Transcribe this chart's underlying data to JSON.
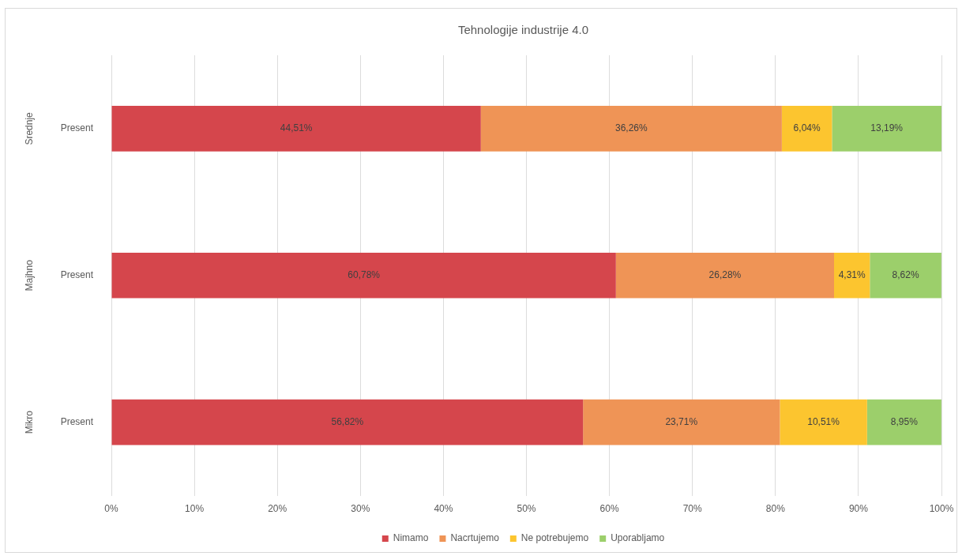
{
  "chart_data": {
    "type": "bar",
    "title": "Tehnologije industrije 4.0",
    "orientation": "horizontal",
    "stacked": true,
    "categories": [
      "Srednje",
      "Majhno",
      "Mikro"
    ],
    "annotations": [
      "Present",
      "Present",
      "Present"
    ],
    "series": [
      {
        "name": "Nimamo",
        "color": "#d5464c",
        "values": [
          44.51,
          60.78,
          56.82
        ],
        "value_labels": [
          "44,51%",
          "60,78%",
          "56,82%"
        ]
      },
      {
        "name": "Nacrtujemo",
        "color": "#ef9456",
        "values": [
          36.26,
          26.28,
          23.71
        ],
        "value_labels": [
          "36,26%",
          "26,28%",
          "23,71%"
        ]
      },
      {
        "name": "Ne potrebujemo",
        "color": "#fcc52f",
        "values": [
          6.04,
          4.31,
          10.51
        ],
        "value_labels": [
          "6,04%",
          "4,31%",
          "10,51%"
        ]
      },
      {
        "name": "Uporabljamo",
        "color": "#9ccf6b",
        "values": [
          13.19,
          8.62,
          8.95
        ],
        "value_labels": [
          "13,19%",
          "8,62%",
          "8,95%"
        ]
      }
    ],
    "xlim": [
      0,
      100
    ],
    "xticks": [
      {
        "value": 0,
        "label": "0%"
      },
      {
        "value": 10,
        "label": "10%"
      },
      {
        "value": 20,
        "label": "20%"
      },
      {
        "value": 30,
        "label": "30%"
      },
      {
        "value": 40,
        "label": "40%"
      },
      {
        "value": 50,
        "label": "50%"
      },
      {
        "value": 60,
        "label": "60%"
      },
      {
        "value": 70,
        "label": "70%"
      },
      {
        "value": 80,
        "label": "80%"
      },
      {
        "value": 90,
        "label": "90%"
      },
      {
        "value": 100,
        "label": "100%"
      }
    ],
    "grid": "x",
    "legend": "bottom"
  }
}
